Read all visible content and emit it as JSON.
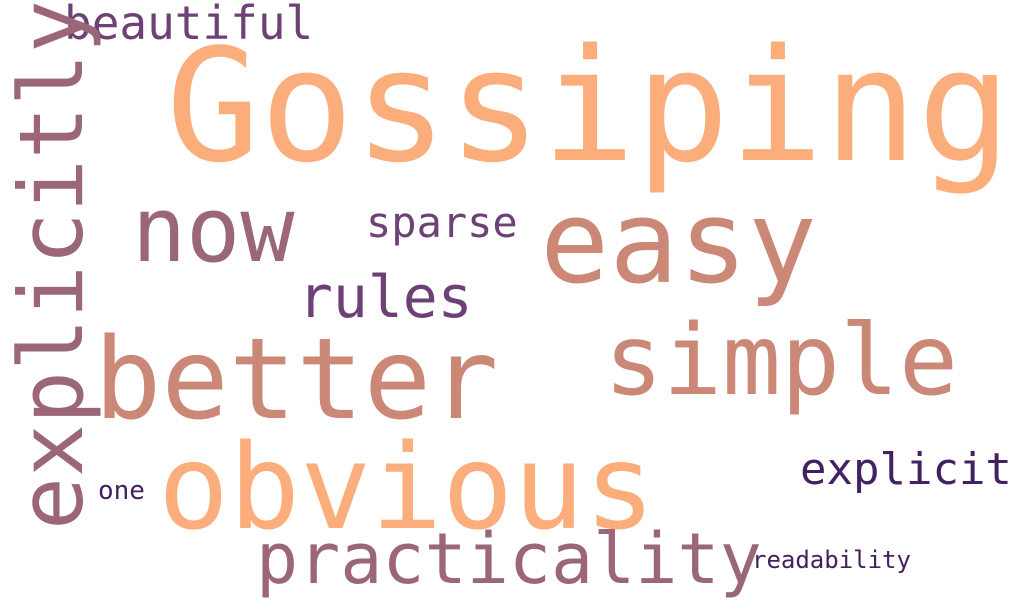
{
  "words": {
    "gossiping": "Gossiping",
    "beautiful": "beautiful",
    "now": "now",
    "sparse": "sparse",
    "easy": "easy",
    "rules": "rules",
    "simple": "simple",
    "better": "better",
    "obvious": "obvious",
    "explicitly": "explicitly",
    "explicit": "explicit",
    "one": "one",
    "practicality": "practicality",
    "readability": "readability"
  },
  "colors": {
    "background": "#ffffff",
    "peach": "#fbad7c",
    "salmon": "#cb8877",
    "mauve": "#9b6678",
    "plum": "#6e4176",
    "indigo": "#43205f"
  }
}
